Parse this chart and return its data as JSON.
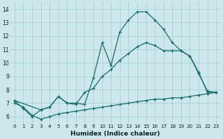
{
  "xlabel": "Humidex (Indice chaleur)",
  "xlim": [
    -0.5,
    23.5
  ],
  "ylim": [
    5.5,
    14.5
  ],
  "yticks": [
    6,
    7,
    8,
    9,
    10,
    11,
    12,
    13,
    14
  ],
  "xticks": [
    0,
    1,
    2,
    3,
    4,
    5,
    6,
    7,
    8,
    9,
    10,
    11,
    12,
    13,
    14,
    15,
    16,
    17,
    18,
    19,
    20,
    21,
    22,
    23
  ],
  "bg_color": "#cce8ec",
  "grid_color": "#aacdd4",
  "line_color": "#1a6b6b",
  "line1_y": [
    7.2,
    6.6,
    6.0,
    6.5,
    6.7,
    7.5,
    7.0,
    7.0,
    6.9,
    8.9,
    11.5,
    9.8,
    12.3,
    13.2,
    13.8,
    13.8,
    13.2,
    12.5,
    11.5,
    10.9,
    10.5,
    9.3,
    7.8,
    7.8
  ],
  "line2_x": [
    0,
    3,
    4,
    5,
    6,
    7,
    8,
    9,
    10,
    11,
    12,
    13,
    14,
    15,
    16,
    17,
    18,
    19,
    20,
    21,
    22,
    23
  ],
  "line2_y": [
    7.2,
    6.5,
    6.7,
    7.5,
    7.0,
    6.9,
    7.8,
    8.1,
    9.0,
    9.5,
    10.2,
    10.7,
    11.2,
    11.5,
    11.3,
    10.9,
    10.9,
    10.9,
    10.5,
    9.2,
    7.9,
    7.8
  ],
  "line3_x": [
    0,
    1,
    2,
    3,
    4,
    5,
    6,
    7,
    8,
    9,
    10,
    11,
    12,
    13,
    14,
    15,
    16,
    17,
    18,
    19,
    20,
    21,
    22,
    23
  ],
  "line3_y": [
    7.0,
    6.7,
    6.1,
    5.8,
    6.0,
    6.2,
    6.3,
    6.4,
    6.5,
    6.6,
    6.7,
    6.8,
    6.9,
    7.0,
    7.1,
    7.2,
    7.3,
    7.3,
    7.4,
    7.4,
    7.5,
    7.6,
    7.7,
    7.8
  ]
}
